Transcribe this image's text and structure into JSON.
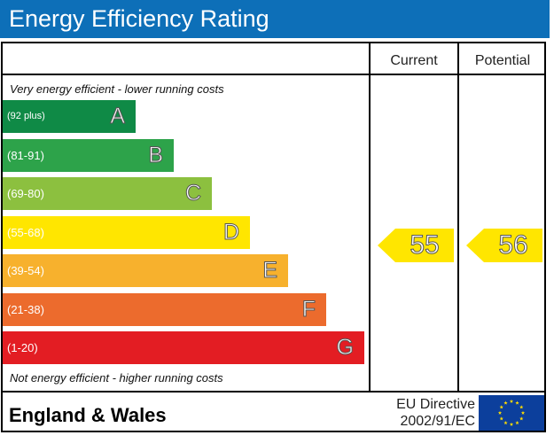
{
  "title": "Energy Efficiency Rating",
  "columns": {
    "current": "Current",
    "potential": "Potential"
  },
  "notes": {
    "top": "Very energy efficient - lower running costs",
    "bottom": "Not energy efficient - higher running costs"
  },
  "footer": {
    "region": "England & Wales",
    "directive_line1": "EU Directive",
    "directive_line2": "2002/91/EC"
  },
  "chart_data": {
    "type": "bar",
    "title": "Energy Efficiency Rating",
    "categories": [
      "A",
      "B",
      "C",
      "D",
      "E",
      "F",
      "G"
    ],
    "ranges": [
      "(92 plus)",
      "(81-91)",
      "(69-80)",
      "(55-68)",
      "(39-54)",
      "(21-38)",
      "(1-20)"
    ],
    "band_colors": [
      "#0f8a46",
      "#2da34a",
      "#8cc03f",
      "#ffe600",
      "#f7b12d",
      "#ec6b2d",
      "#e31d23"
    ],
    "series": [
      {
        "name": "Current",
        "value": 55,
        "band": "D",
        "color": "#ffe600"
      },
      {
        "name": "Potential",
        "value": 56,
        "band": "D",
        "color": "#ffe600"
      }
    ]
  }
}
